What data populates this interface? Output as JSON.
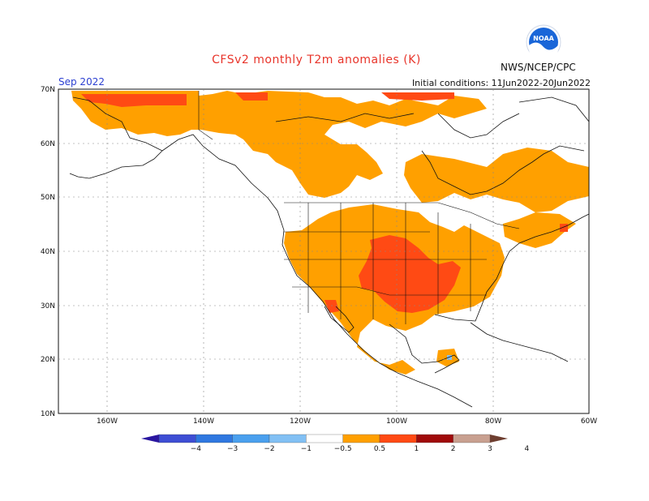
{
  "title": "CFSv2 monthly T2m anomalies (K)",
  "valid_month": "Sep 2022",
  "initial_conditions": "Initial conditions: 11Jun2022-20Jun2022",
  "agency": "NWS/NCEP/CPC",
  "logo_icon": "noaa-logo-icon",
  "map": {
    "lon_labels": [
      "160W",
      "140W",
      "120W",
      "100W",
      "80W",
      "60W"
    ],
    "lat_labels": [
      "70N",
      "60N",
      "50N",
      "40N",
      "30N",
      "20N",
      "10N"
    ]
  },
  "colorbar": {
    "labels": [
      "−4",
      "−3",
      "−2",
      "−1",
      "−0.5",
      "0.5",
      "1",
      "2",
      "3",
      "4"
    ],
    "colors": [
      "#2a16a0",
      "#3e4ed4",
      "#2f78e0",
      "#4aa0ee",
      "#82c0f4",
      "#ffffff",
      "#ffa000",
      "#ff4a14",
      "#a00a0a",
      "#c8a090",
      "#6e3e30"
    ]
  },
  "anomaly_categories": {
    "0.5_to_1": "#ffa000",
    "1_to_2": "#ff4a14",
    "2_to_3": "#a00a0a",
    "neg_0.5_to_neg_1": "#82c0f4"
  }
}
